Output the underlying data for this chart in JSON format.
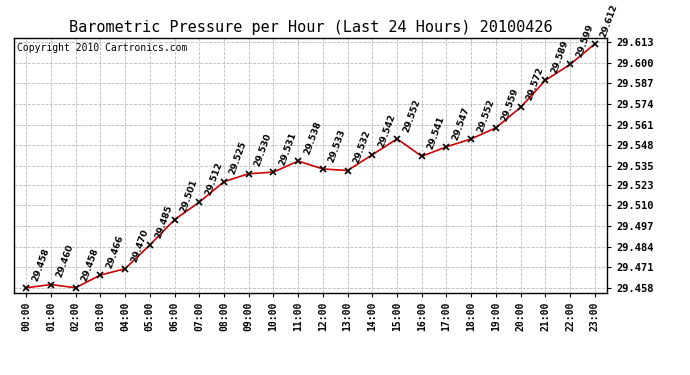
{
  "title": "Barometric Pressure per Hour (Last 24 Hours) 20100426",
  "copyright": "Copyright 2010 Cartronics.com",
  "hours": [
    "00:00",
    "01:00",
    "02:00",
    "03:00",
    "04:00",
    "05:00",
    "06:00",
    "07:00",
    "08:00",
    "09:00",
    "10:00",
    "11:00",
    "12:00",
    "13:00",
    "14:00",
    "15:00",
    "16:00",
    "17:00",
    "18:00",
    "19:00",
    "20:00",
    "21:00",
    "22:00",
    "23:00"
  ],
  "values": [
    29.458,
    29.46,
    29.458,
    29.466,
    29.47,
    29.485,
    29.501,
    29.512,
    29.525,
    29.53,
    29.531,
    29.538,
    29.533,
    29.532,
    29.542,
    29.552,
    29.541,
    29.547,
    29.552,
    29.559,
    29.572,
    29.589,
    29.599,
    29.612
  ],
  "ylim_min": 29.455,
  "ylim_max": 29.616,
  "ytick_values": [
    29.458,
    29.471,
    29.484,
    29.497,
    29.51,
    29.523,
    29.535,
    29.548,
    29.561,
    29.574,
    29.587,
    29.6,
    29.613
  ],
  "line_color": "#cc0000",
  "marker_color": "#000000",
  "bg_color": "#ffffff",
  "plot_bg_color": "#ffffff",
  "grid_color": "#bbbbbb",
  "title_fontsize": 11,
  "copyright_fontsize": 7,
  "label_fontsize": 6.5,
  "ytick_fontsize": 7.5,
  "xtick_fontsize": 7
}
